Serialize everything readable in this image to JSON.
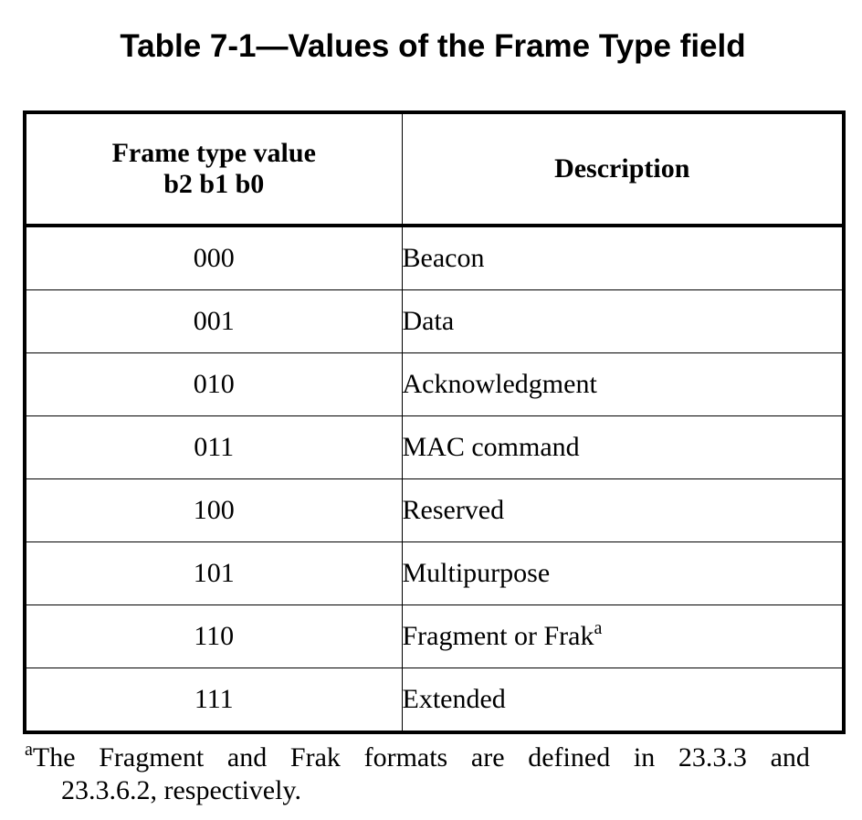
{
  "caption": "Table 7-1—Values of the Frame Type field",
  "table": {
    "headers": {
      "value_line1": "Frame type value",
      "value_line2": "b2 b1 b0",
      "description": "Description"
    },
    "rows": [
      {
        "value": "000",
        "description": "Beacon",
        "footnote_mark": ""
      },
      {
        "value": "001",
        "description": "Data",
        "footnote_mark": ""
      },
      {
        "value": "010",
        "description": "Acknowledgment",
        "footnote_mark": ""
      },
      {
        "value": "011",
        "description": "MAC command",
        "footnote_mark": ""
      },
      {
        "value": "100",
        "description": "Reserved",
        "footnote_mark": ""
      },
      {
        "value": "101",
        "description": "Multipurpose",
        "footnote_mark": ""
      },
      {
        "value": "110",
        "description": "Fragment or Frak",
        "footnote_mark": "a"
      },
      {
        "value": "111",
        "description": "Extended",
        "footnote_mark": ""
      }
    ]
  },
  "footnote": {
    "mark": "a",
    "line1_words": [
      "The",
      "Fragment",
      "and",
      "Frak",
      "formats",
      "are",
      "defined",
      "in",
      "23.3.3",
      "and"
    ],
    "line2": "23.3.6.2, respectively."
  }
}
